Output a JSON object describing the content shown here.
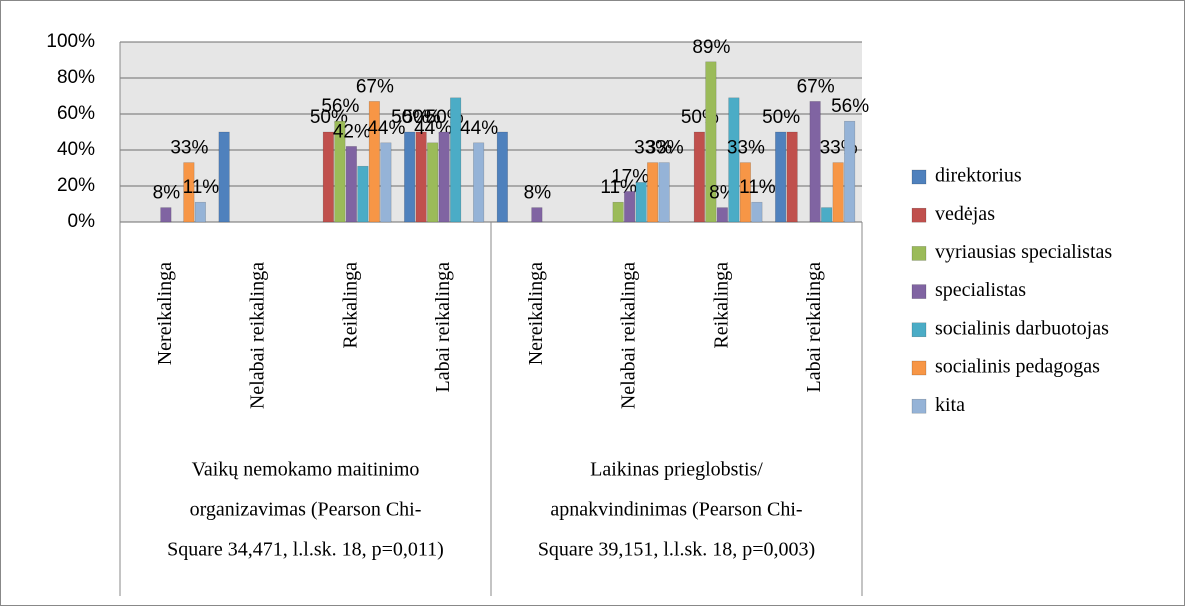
{
  "chart_data": {
    "type": "bar",
    "groups": [
      {
        "lines": [
          "Vaikų nemokamo maitinimo",
          "organizavimas (Pearson Chi-",
          "Square 34,471,  l.l.sk. 18, p=0,011)"
        ]
      },
      {
        "lines": [
          "Laikinas prieglobstis/",
          "apnakvindinimas (Pearson Chi-",
          "Square 39,151,  l.l.sk. 18, p=0,003)"
        ]
      }
    ],
    "categories": [
      "Nereikalinga",
      "Nelabai reikalinga",
      "Reikalinga",
      "Labai reikalinga",
      "Nereikalinga",
      "Nelabai reikalinga",
      "Reikalinga",
      "Labai reikalinga"
    ],
    "series": [
      {
        "name": "direktorius",
        "color": "#4f81bd",
        "values": [
          0,
          50,
          0,
          50,
          50,
          0,
          0,
          50
        ],
        "value_labels": [
          null,
          null,
          null,
          "50%",
          null,
          null,
          null,
          "50%"
        ]
      },
      {
        "name": "vedėjas",
        "color": "#c0504d",
        "values": [
          0,
          0,
          50,
          50,
          0,
          0,
          50,
          50
        ],
        "value_labels": [
          null,
          null,
          "50%",
          "50%",
          null,
          null,
          "50%",
          null
        ]
      },
      {
        "name": "vyriausias specialistas",
        "color": "#9bbb59",
        "values": [
          0,
          0,
          56,
          44,
          0,
          11,
          89,
          0
        ],
        "value_labels": [
          null,
          null,
          "56%",
          "44%",
          null,
          "11%",
          "89%",
          null
        ]
      },
      {
        "name": "specialistas",
        "color": "#8064a2",
        "values": [
          8,
          0,
          42,
          50,
          8,
          17,
          8,
          67
        ],
        "value_labels": [
          "8%",
          null,
          "42%",
          "50%",
          "8%",
          "17%",
          "8%",
          "67%"
        ]
      },
      {
        "name": "socialinis darbuotojas",
        "color": "#4bacc6",
        "values": [
          0,
          0,
          31,
          69,
          0,
          22,
          69,
          8
        ],
        "value_labels": [
          null,
          null,
          null,
          null,
          null,
          null,
          null,
          null
        ]
      },
      {
        "name": "socialinis pedagogas",
        "color": "#f79646",
        "values": [
          33,
          0,
          67,
          0,
          0,
          33,
          33,
          33
        ],
        "value_labels": [
          "33%",
          null,
          "67%",
          null,
          null,
          "33%",
          "33%",
          "33%"
        ]
      },
      {
        "name": "kita",
        "color": "#95b3d7",
        "values": [
          11,
          0,
          44,
          44,
          0,
          33,
          11,
          56
        ],
        "value_labels": [
          "11%",
          null,
          "44%",
          "44%",
          null,
          "33%",
          "11%",
          "56%"
        ]
      }
    ],
    "ylim": [
      0,
      100
    ],
    "yticks": [
      {
        "value": 0,
        "label": "0%"
      },
      {
        "value": 20,
        "label": "20%"
      },
      {
        "value": 40,
        "label": "40%"
      },
      {
        "value": 60,
        "label": "60%"
      },
      {
        "value": 80,
        "label": "80%"
      },
      {
        "value": 100,
        "label": "100%"
      }
    ],
    "grid": true,
    "legend": "right"
  }
}
